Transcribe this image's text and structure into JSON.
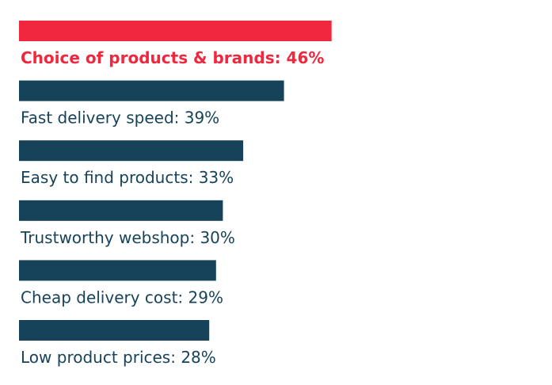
{
  "chart_data": {
    "type": "bar",
    "orientation": "horizontal",
    "title": "",
    "xlabel": "",
    "ylabel": "",
    "xlim": [
      0,
      100
    ],
    "grid": false,
    "legend": "none",
    "categories": [
      "Choice of products & brands",
      "Fast delivery speed",
      "Easy to find products",
      "Trustworthy webshop",
      "Cheap delivery cost",
      "Low product prices"
    ],
    "values": [
      46,
      39,
      33,
      30,
      29,
      28
    ],
    "labels": [
      "Choice of products & brands: 46%",
      "Fast delivery speed: 39%",
      "Easy to find products: 33%",
      "Trustworthy webshop: 30%",
      "Cheap delivery cost: 29%",
      "Low product prices: 28%"
    ],
    "highlight_index": 0,
    "colors": {
      "highlight": "#f0273d",
      "default": "#17435a",
      "label_default": "#17435a",
      "label_highlight": "#f0273d"
    }
  }
}
